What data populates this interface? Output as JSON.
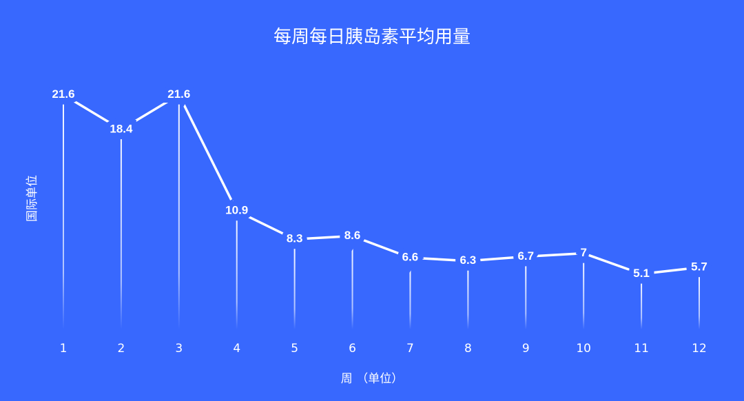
{
  "chart_data": {
    "type": "line",
    "title": "每周每日胰岛素平均用量",
    "x_label": "周 （单位）",
    "y_label": "国际单位",
    "categories": [
      "1",
      "2",
      "3",
      "4",
      "5",
      "6",
      "7",
      "8",
      "9",
      "10",
      "11",
      "12"
    ],
    "values": [
      21.6,
      18.4,
      21.6,
      10.9,
      8.3,
      8.6,
      6.6,
      6.3,
      6.7,
      7,
      5.1,
      5.7
    ],
    "color": "#ffffff",
    "background": "#3868fe",
    "ylim": [
      0,
      25
    ]
  }
}
